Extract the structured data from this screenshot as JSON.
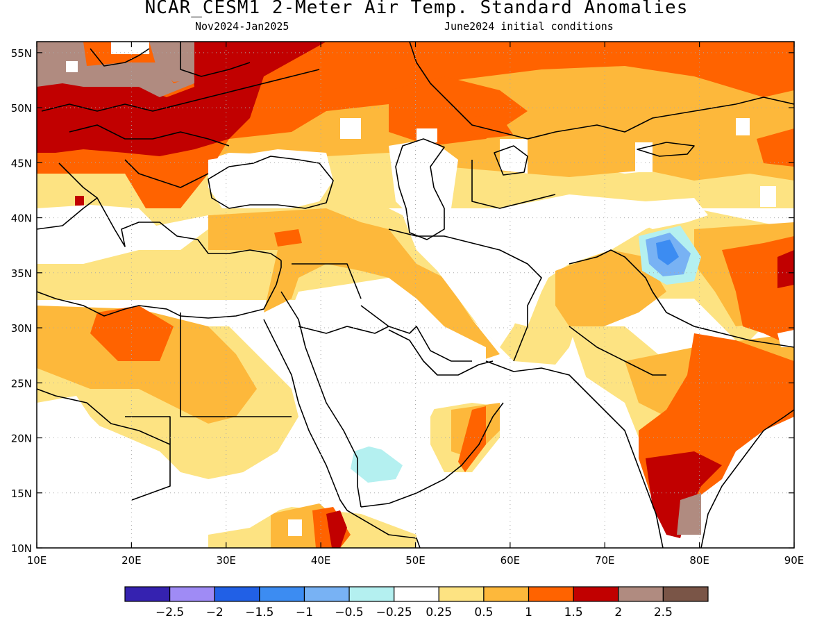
{
  "title": "NCAR_CESM1 2-Meter Air Temp. Standard Anomalies",
  "subtitle_left": "Nov2024-Jan2025",
  "subtitle_right": "June2024 initial conditions",
  "map": {
    "lon_range": [
      10,
      90
    ],
    "lat_range": [
      10,
      56
    ],
    "lon_ticks": [
      {
        "v": 10,
        "label": "10E"
      },
      {
        "v": 20,
        "label": "20E"
      },
      {
        "v": 30,
        "label": "30E"
      },
      {
        "v": 40,
        "label": "40E"
      },
      {
        "v": 50,
        "label": "50E"
      },
      {
        "v": 60,
        "label": "60E"
      },
      {
        "v": 70,
        "label": "70E"
      },
      {
        "v": 80,
        "label": "80E"
      },
      {
        "v": 90,
        "label": "90E"
      }
    ],
    "lat_ticks": [
      {
        "v": 10,
        "label": "10N"
      },
      {
        "v": 15,
        "label": "15N"
      },
      {
        "v": 20,
        "label": "20N"
      },
      {
        "v": 25,
        "label": "25N"
      },
      {
        "v": 30,
        "label": "30N"
      },
      {
        "v": 35,
        "label": "35N"
      },
      {
        "v": 40,
        "label": "40N"
      },
      {
        "v": 45,
        "label": "45N"
      },
      {
        "v": 50,
        "label": "50N"
      },
      {
        "v": 55,
        "label": "55N"
      }
    ],
    "gridlines": "dotted"
  },
  "colorbar": {
    "colors": [
      "#3522b0",
      "#9f8bf5",
      "#2160e6",
      "#3c8cf2",
      "#78b2f4",
      "#b4f0f0",
      "#ffffff",
      "#fde382",
      "#fdb83b",
      "#ff6300",
      "#c10000",
      "#b08b80",
      "#7a5547"
    ],
    "labels": [
      "-2.5",
      "-2",
      "-1.5",
      "-1",
      "-0.5",
      "-0.25",
      "0.25",
      "0.5",
      "1",
      "1.5",
      "2",
      "2.5"
    ]
  },
  "anomaly_regions": [
    {
      "level": "1",
      "color": "#fdb83b"
    },
    {
      "level": "1.5",
      "color": "#ff6300"
    },
    {
      "level": "2",
      "color": "#c10000"
    },
    {
      "level": "2.5",
      "color": "#b08b80"
    },
    {
      "level": "0.5",
      "color": "#fde382"
    },
    {
      "level": "-0.5",
      "color": "#b4f0f0"
    },
    {
      "level": "-1",
      "color": "#78b2f4"
    },
    {
      "level": "-1.5",
      "color": "#3c8cf2"
    }
  ]
}
